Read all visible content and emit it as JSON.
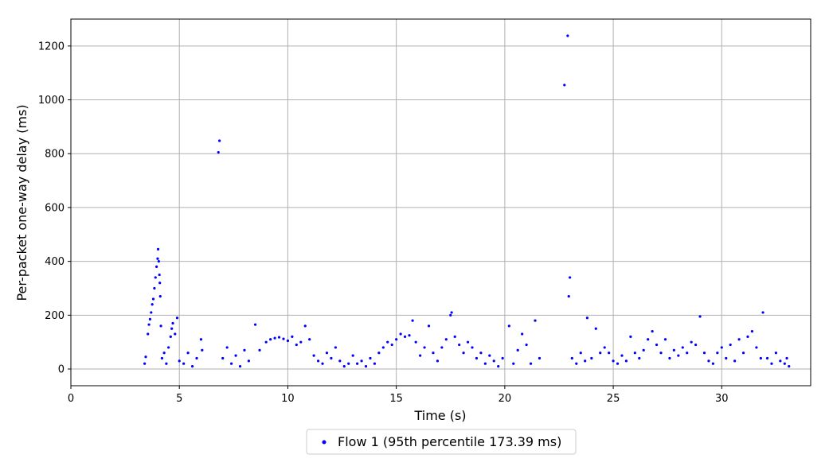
{
  "chart_data": {
    "type": "scatter",
    "title": "",
    "xlabel": "Time (s)",
    "ylabel": "Per-packet one-way delay (ms)",
    "xlim": [
      0,
      34.1
    ],
    "ylim": [
      -62,
      1300
    ],
    "xticks": [
      0,
      5,
      10,
      15,
      20,
      25,
      30
    ],
    "yticks": [
      0,
      200,
      400,
      600,
      800,
      1000,
      1200
    ],
    "grid": true,
    "legend_position": "bottom-center",
    "series": [
      {
        "name": "Flow 1 (95th percentile 173.39 ms)",
        "color": "#0000ff",
        "points": [
          [
            3.4,
            20
          ],
          [
            3.45,
            45
          ],
          [
            3.55,
            130
          ],
          [
            3.6,
            165
          ],
          [
            3.65,
            185
          ],
          [
            3.7,
            210
          ],
          [
            3.75,
            240
          ],
          [
            3.8,
            260
          ],
          [
            3.85,
            300
          ],
          [
            3.9,
            340
          ],
          [
            3.95,
            380
          ],
          [
            4.0,
            410
          ],
          [
            4.02,
            445
          ],
          [
            4.05,
            400
          ],
          [
            4.08,
            350
          ],
          [
            4.1,
            320
          ],
          [
            4.12,
            270
          ],
          [
            4.15,
            160
          ],
          [
            4.2,
            40
          ],
          [
            4.3,
            60
          ],
          [
            4.4,
            20
          ],
          [
            4.5,
            80
          ],
          [
            4.6,
            120
          ],
          [
            4.65,
            150
          ],
          [
            4.7,
            170
          ],
          [
            4.8,
            130
          ],
          [
            4.9,
            190
          ],
          [
            5.0,
            30
          ],
          [
            5.2,
            20
          ],
          [
            5.4,
            60
          ],
          [
            5.6,
            10
          ],
          [
            5.8,
            40
          ],
          [
            6.0,
            110
          ],
          [
            6.05,
            70
          ],
          [
            6.8,
            805
          ],
          [
            6.85,
            848
          ],
          [
            7.0,
            40
          ],
          [
            7.2,
            80
          ],
          [
            7.4,
            20
          ],
          [
            7.6,
            50
          ],
          [
            7.8,
            10
          ],
          [
            8.0,
            70
          ],
          [
            8.2,
            30
          ],
          [
            8.5,
            165
          ],
          [
            8.7,
            70
          ],
          [
            9.0,
            100
          ],
          [
            9.2,
            110
          ],
          [
            9.4,
            115
          ],
          [
            9.6,
            118
          ],
          [
            9.8,
            112
          ],
          [
            10.0,
            105
          ],
          [
            10.2,
            120
          ],
          [
            10.4,
            90
          ],
          [
            10.6,
            100
          ],
          [
            10.8,
            160
          ],
          [
            11.0,
            110
          ],
          [
            11.2,
            50
          ],
          [
            11.4,
            30
          ],
          [
            11.6,
            20
          ],
          [
            11.8,
            60
          ],
          [
            12.0,
            40
          ],
          [
            12.2,
            80
          ],
          [
            12.4,
            30
          ],
          [
            12.6,
            10
          ],
          [
            12.8,
            20
          ],
          [
            13.0,
            50
          ],
          [
            13.2,
            20
          ],
          [
            13.4,
            30
          ],
          [
            13.6,
            10
          ],
          [
            13.8,
            40
          ],
          [
            14.0,
            20
          ],
          [
            14.2,
            60
          ],
          [
            14.4,
            80
          ],
          [
            14.6,
            100
          ],
          [
            14.8,
            90
          ],
          [
            15.0,
            110
          ],
          [
            15.2,
            130
          ],
          [
            15.4,
            120
          ],
          [
            15.6,
            125
          ],
          [
            15.75,
            180
          ],
          [
            15.9,
            100
          ],
          [
            16.1,
            50
          ],
          [
            16.3,
            80
          ],
          [
            16.5,
            160
          ],
          [
            16.7,
            60
          ],
          [
            16.9,
            30
          ],
          [
            17.1,
            80
          ],
          [
            17.3,
            110
          ],
          [
            17.5,
            200
          ],
          [
            17.55,
            210
          ],
          [
            17.7,
            120
          ],
          [
            17.9,
            90
          ],
          [
            18.1,
            60
          ],
          [
            18.3,
            100
          ],
          [
            18.5,
            80
          ],
          [
            18.7,
            40
          ],
          [
            18.9,
            60
          ],
          [
            19.1,
            20
          ],
          [
            19.3,
            50
          ],
          [
            19.5,
            30
          ],
          [
            19.7,
            10
          ],
          [
            19.9,
            40
          ],
          [
            20.2,
            160
          ],
          [
            20.4,
            20
          ],
          [
            20.6,
            70
          ],
          [
            20.8,
            130
          ],
          [
            21.0,
            90
          ],
          [
            21.2,
            20
          ],
          [
            21.4,
            180
          ],
          [
            21.6,
            40
          ],
          [
            22.75,
            1055
          ],
          [
            22.9,
            1238
          ],
          [
            22.95,
            270
          ],
          [
            23.0,
            340
          ],
          [
            23.1,
            40
          ],
          [
            23.3,
            20
          ],
          [
            23.5,
            60
          ],
          [
            23.7,
            30
          ],
          [
            23.8,
            190
          ],
          [
            24.0,
            40
          ],
          [
            24.2,
            150
          ],
          [
            24.4,
            60
          ],
          [
            24.6,
            80
          ],
          [
            24.8,
            60
          ],
          [
            25.0,
            30
          ],
          [
            25.2,
            20
          ],
          [
            25.4,
            50
          ],
          [
            25.6,
            30
          ],
          [
            25.8,
            120
          ],
          [
            26.0,
            60
          ],
          [
            26.2,
            40
          ],
          [
            26.4,
            70
          ],
          [
            26.6,
            110
          ],
          [
            26.8,
            140
          ],
          [
            27.0,
            90
          ],
          [
            27.2,
            60
          ],
          [
            27.4,
            110
          ],
          [
            27.6,
            40
          ],
          [
            27.8,
            70
          ],
          [
            28.0,
            50
          ],
          [
            28.2,
            80
          ],
          [
            28.4,
            60
          ],
          [
            28.6,
            100
          ],
          [
            28.8,
            90
          ],
          [
            29.0,
            195
          ],
          [
            29.2,
            60
          ],
          [
            29.4,
            30
          ],
          [
            29.6,
            20
          ],
          [
            29.8,
            60
          ],
          [
            30.0,
            80
          ],
          [
            30.2,
            40
          ],
          [
            30.4,
            90
          ],
          [
            30.6,
            30
          ],
          [
            30.8,
            110
          ],
          [
            31.0,
            60
          ],
          [
            31.2,
            120
          ],
          [
            31.4,
            140
          ],
          [
            31.6,
            80
          ],
          [
            31.8,
            40
          ],
          [
            31.9,
            210
          ],
          [
            32.1,
            40
          ],
          [
            32.3,
            20
          ],
          [
            32.5,
            60
          ],
          [
            32.7,
            30
          ],
          [
            32.9,
            20
          ],
          [
            33.0,
            40
          ],
          [
            33.1,
            10
          ]
        ]
      }
    ]
  }
}
